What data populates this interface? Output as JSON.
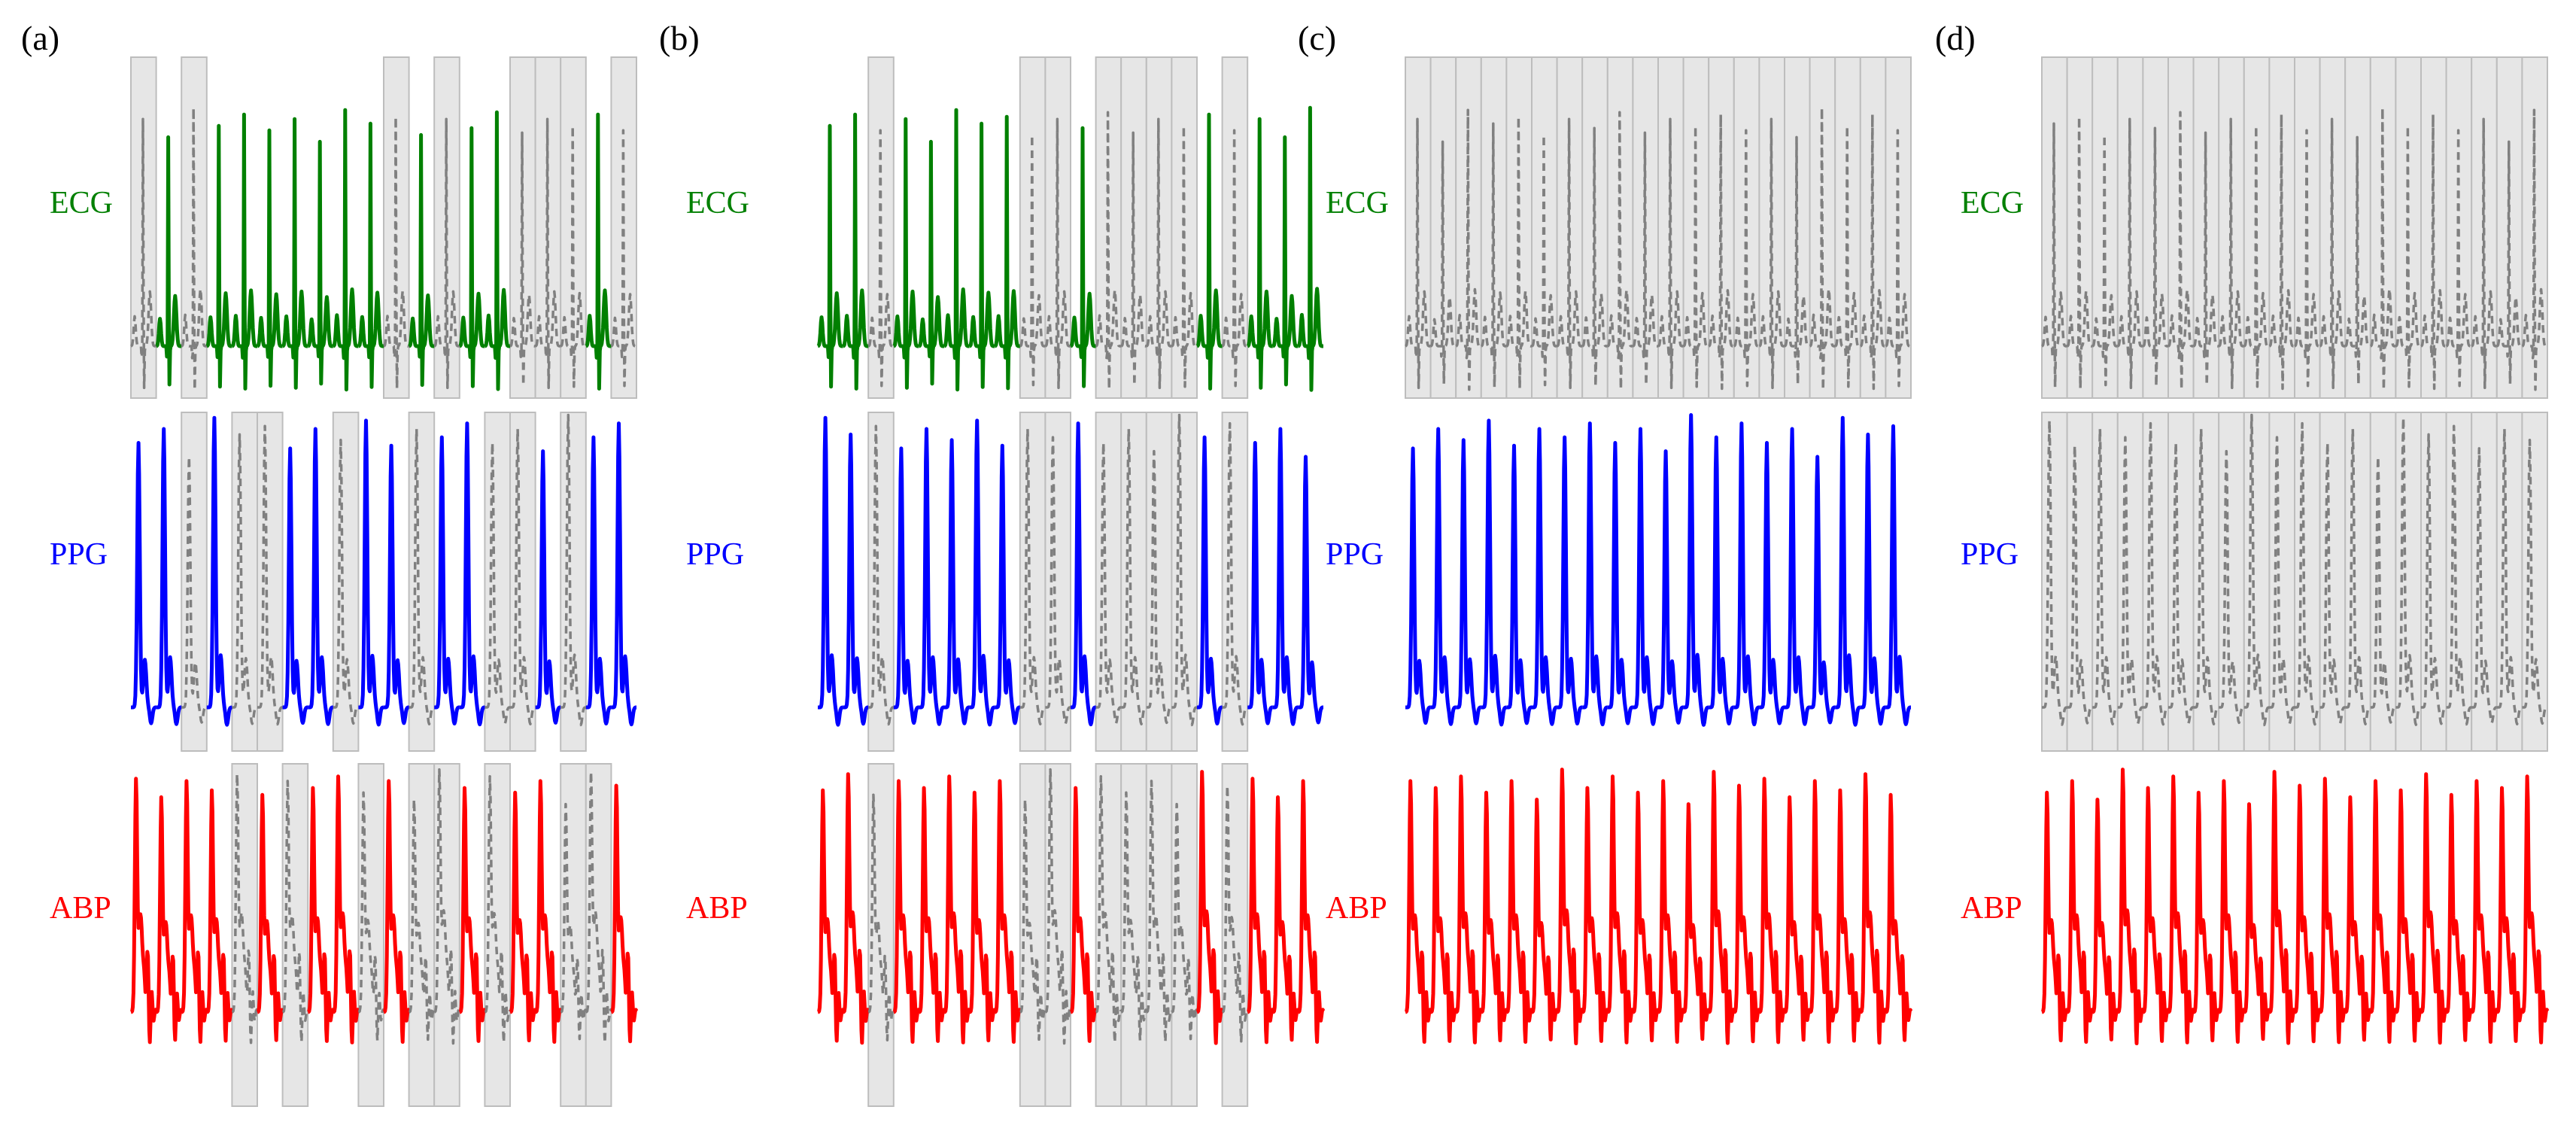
{
  "panels": [
    {
      "label": "(a)",
      "masks": {
        "ECG": [
          0,
          2,
          10,
          12,
          15,
          16,
          17,
          19
        ],
        "PPG": [
          2,
          4,
          5,
          8,
          11,
          14,
          15,
          17
        ],
        "ABP": [
          4,
          6,
          9,
          11,
          12,
          14,
          17,
          18
        ]
      }
    },
    {
      "label": "(b)",
      "masks": {
        "ECG": [
          2,
          8,
          9,
          11,
          12,
          13,
          14,
          16
        ],
        "PPG": [
          2,
          8,
          9,
          11,
          12,
          13,
          14,
          16
        ],
        "ABP": [
          2,
          8,
          9,
          11,
          12,
          13,
          14,
          16
        ]
      }
    },
    {
      "label": "(c)",
      "masks": {
        "ECG": [
          0,
          1,
          2,
          3,
          4,
          5,
          6,
          7,
          8,
          9,
          10,
          11,
          12,
          13,
          14,
          15,
          16,
          17,
          18,
          19
        ],
        "PPG": [],
        "ABP": []
      }
    },
    {
      "label": "(d)",
      "masks": {
        "ECG": [
          0,
          1,
          2,
          3,
          4,
          5,
          6,
          7,
          8,
          9,
          10,
          11,
          12,
          13,
          14,
          15,
          16,
          17,
          18,
          19
        ],
        "PPG": [
          0,
          1,
          2,
          3,
          4,
          5,
          6,
          7,
          8,
          9,
          10,
          11,
          12,
          13,
          14,
          15,
          16,
          17,
          18,
          19
        ],
        "ABP": []
      }
    }
  ],
  "signals": [
    {
      "key": "ECG",
      "label": "ECG",
      "color": "#008000"
    },
    {
      "key": "PPG",
      "label": "PPG",
      "color": "#0000ff"
    },
    {
      "key": "ABP",
      "label": "ABP",
      "color": "#ff0000"
    }
  ],
  "segments_per_row": 20,
  "masked_style": {
    "fill": "#e6e6e6",
    "border": "#bdbdbd",
    "trace": "#808080"
  }
}
